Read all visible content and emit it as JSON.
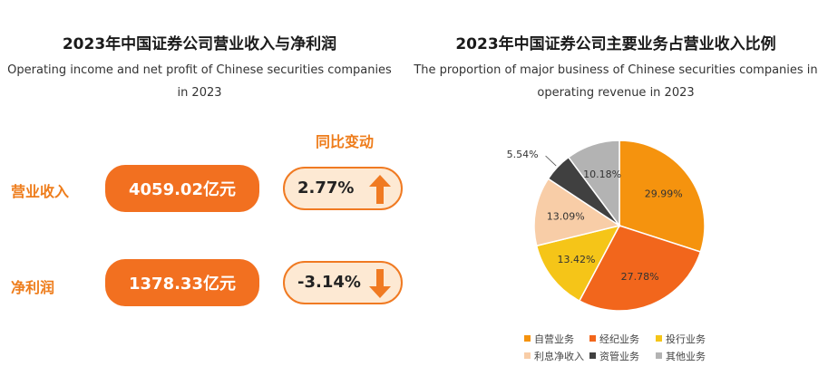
{
  "left_panel": {
    "title_cn": "2023年中国证券公司营业收入与净利润",
    "title_en_line1": "Operating income and net profit of Chinese securities companies",
    "title_en_line2": "in 2023",
    "yoy_header": "同比变动",
    "rows": [
      {
        "label": "营业收入",
        "value": "4059.02亿元",
        "change": "2.77%",
        "direction": "up"
      },
      {
        "label": "净利润",
        "value": "1378.33亿元",
        "change": "-3.14%",
        "direction": "down"
      }
    ],
    "colors": {
      "accent": "#f27020",
      "change_bg": "#fde9d3",
      "arrow": "#f07a22"
    }
  },
  "right_panel": {
    "title_cn": "2023年中国证券公司主要业务占营业收入比例",
    "title_en_line1": "The proportion of major business of Chinese securities companies in",
    "title_en_line2": "operating revenue in 2023"
  },
  "chart_data": {
    "type": "pie",
    "title": "2023年中国证券公司主要业务占营业收入比例",
    "unit": "%",
    "start_angle_deg": 0,
    "direction": "clockwise",
    "legend_position": "bottom",
    "slices": [
      {
        "name": "自营业务",
        "value": 29.99,
        "label": "29.99%",
        "color": "#f5930e"
      },
      {
        "name": "经纪业务",
        "value": 27.78,
        "label": "27.78%",
        "color": "#f2661c"
      },
      {
        "name": "投行业务",
        "value": 13.42,
        "label": "13.42%",
        "color": "#f5c518"
      },
      {
        "name": "利息净收入",
        "value": 13.09,
        "label": "13.09%",
        "color": "#f8cda7"
      },
      {
        "name": "资管业务",
        "value": 5.54,
        "label": "5.54%",
        "color": "#404040"
      },
      {
        "name": "其他业务",
        "value": 10.18,
        "label": "10.18%",
        "color": "#b3b3b3"
      }
    ]
  }
}
